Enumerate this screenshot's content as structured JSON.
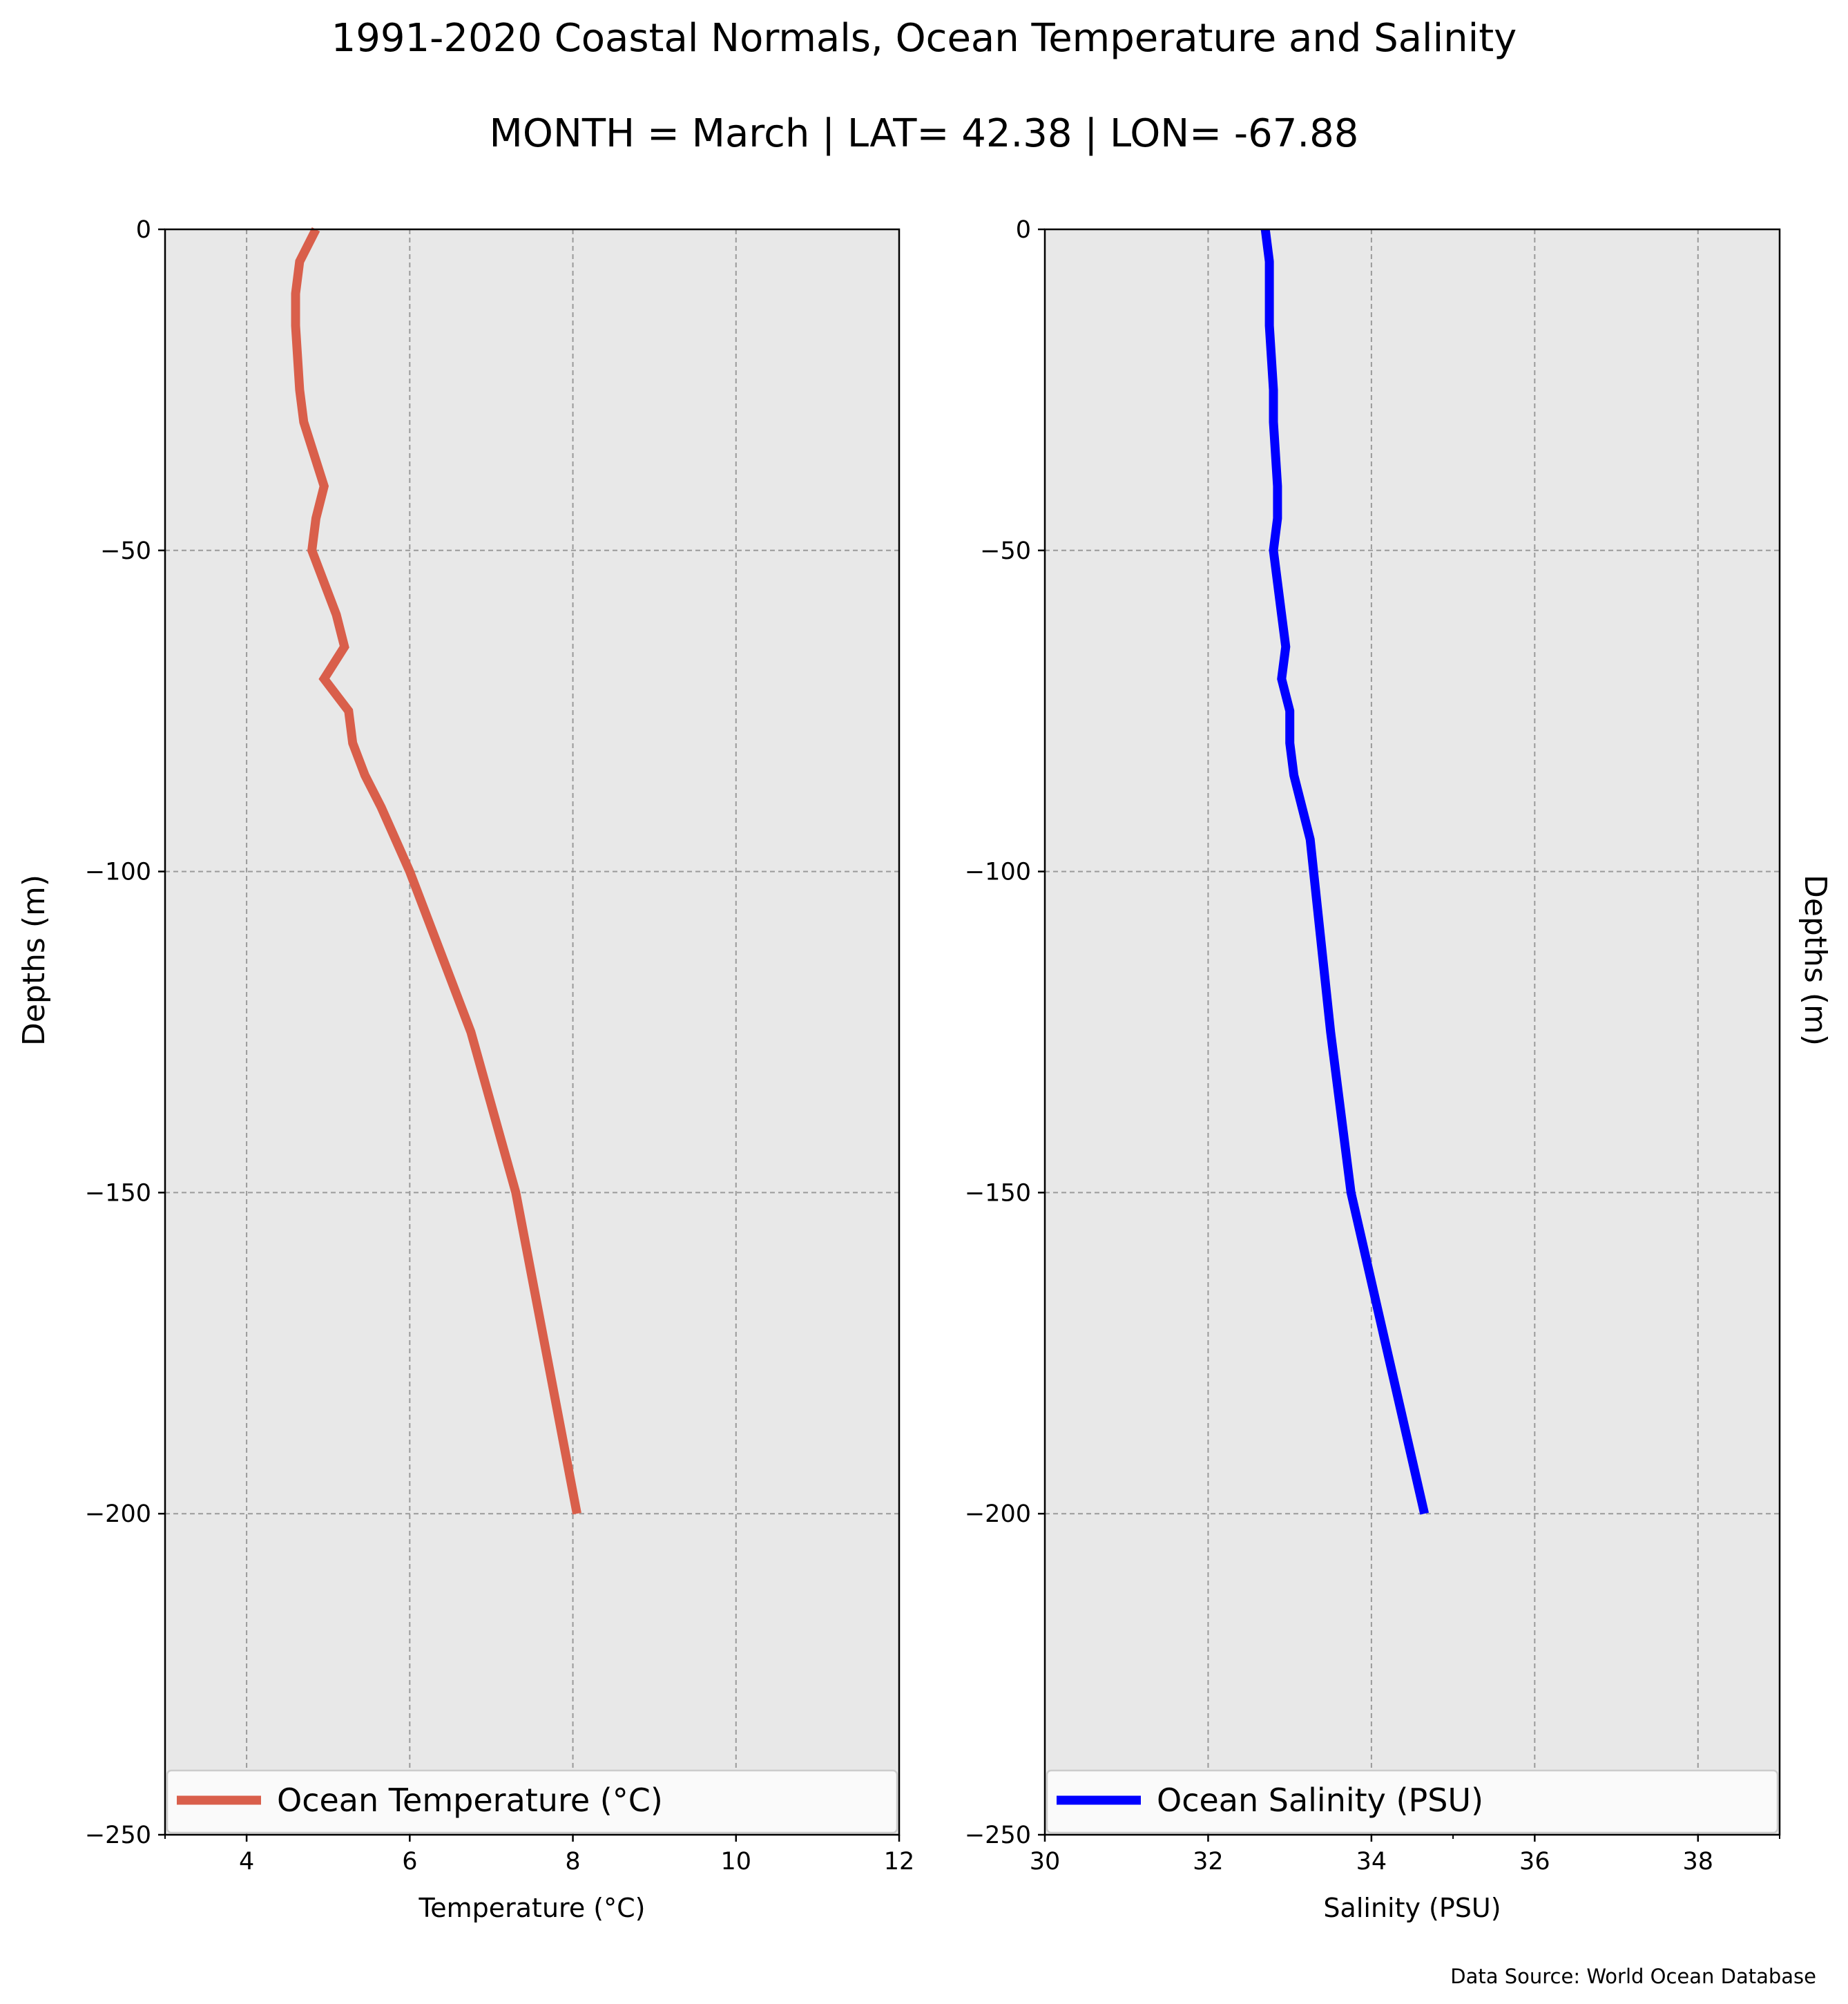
{
  "figure": {
    "title": "1991-2020 Coastal Normals, Ocean Temperature and Salinity",
    "subtitle": "MONTH = March | LAT= 42.38 | LON= -67.88",
    "source_note": "Data Source: World Ocean Database"
  },
  "chart_data": [
    {
      "type": "line",
      "xlabel": "Temperature ($^\\circ$C)",
      "xlabel_display": "Temperature (°C)",
      "ylabel": "Depths (m)",
      "xlim": [
        3,
        12
      ],
      "ylim": [
        -250,
        0
      ],
      "xticks": [
        4,
        6,
        8,
        10,
        12
      ],
      "yticks": [
        0,
        -50,
        -100,
        -150,
        -200,
        -250
      ],
      "y_tick_labels": [
        "0",
        "−50",
        "−100",
        "−150",
        "−200",
        "−250"
      ],
      "grid": true,
      "legend_position": "lower center",
      "series": [
        {
          "name": "Ocean Temperature (°C)",
          "color": "#d95f4b",
          "x": [
            4.85,
            4.65,
            4.6,
            4.6,
            4.65,
            4.7,
            4.95,
            4.85,
            4.8,
            5.1,
            5.2,
            4.95,
            5.25,
            5.3,
            5.45,
            5.65,
            6.0,
            6.75,
            7.3,
            8.05
          ],
          "y": [
            0,
            -5,
            -10,
            -15,
            -25,
            -30,
            -40,
            -45,
            -50,
            -60,
            -65,
            -70,
            -75,
            -80,
            -85,
            -90,
            -100,
            -125,
            -150,
            -200
          ]
        }
      ]
    },
    {
      "type": "line",
      "xlabel": "Salinity (PSU)",
      "ylabel": "Depths (m)",
      "xlim": [
        30,
        39
      ],
      "ylim": [
        -250,
        0
      ],
      "xticks": [
        30,
        32,
        34,
        36,
        38
      ],
      "yticks": [
        0,
        -50,
        -100,
        -150,
        -200,
        -250
      ],
      "y_tick_labels": [
        "0",
        "−50",
        "−100",
        "−150",
        "−200",
        "−250"
      ],
      "grid": true,
      "legend_position": "lower center",
      "series": [
        {
          "name": "Ocean Salinity (PSU)",
          "color": "#0000ff",
          "x": [
            32.7,
            32.75,
            32.75,
            32.75,
            32.8,
            32.8,
            32.85,
            32.85,
            32.8,
            32.9,
            32.95,
            32.9,
            33.0,
            33.0,
            33.05,
            33.15,
            33.25,
            33.5,
            33.75,
            34.2,
            34.65
          ],
          "y": [
            0,
            -5,
            -10,
            -15,
            -25,
            -30,
            -40,
            -45,
            -50,
            -60,
            -65,
            -70,
            -75,
            -80,
            -85,
            -90,
            -95,
            -125,
            -150,
            -175,
            -200
          ]
        }
      ]
    }
  ]
}
